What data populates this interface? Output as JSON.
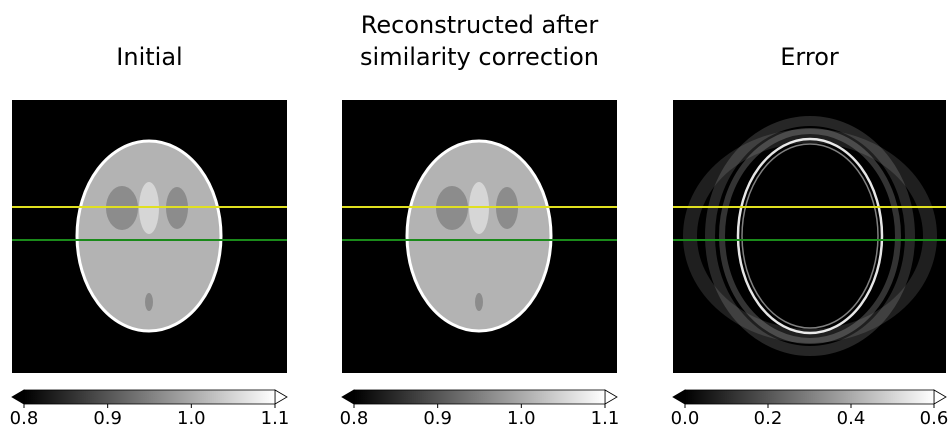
{
  "chart_data": [
    {
      "type": "image",
      "title": [
        "Initial"
      ],
      "clim": [
        0.8,
        1.1
      ],
      "cticks": [
        0.8,
        0.9,
        {
          "value": 1,
          "label": "1.0"
        },
        1.1
      ]
    },
    {
      "type": "image",
      "title": [
        "Reconstructed after",
        "similarity correction"
      ],
      "clim": [
        0.8,
        1.1
      ],
      "cticks": [
        0.8,
        0.9,
        {
          "value": 1,
          "label": "1.0"
        },
        1.1
      ]
    },
    {
      "type": "image",
      "title": [
        "Error"
      ],
      "clim": [
        0,
        0.6
      ],
      "cticks": [
        {
          "value": 0,
          "label": "0.0"
        },
        0.2,
        0.4,
        0.6
      ]
    }
  ]
}
